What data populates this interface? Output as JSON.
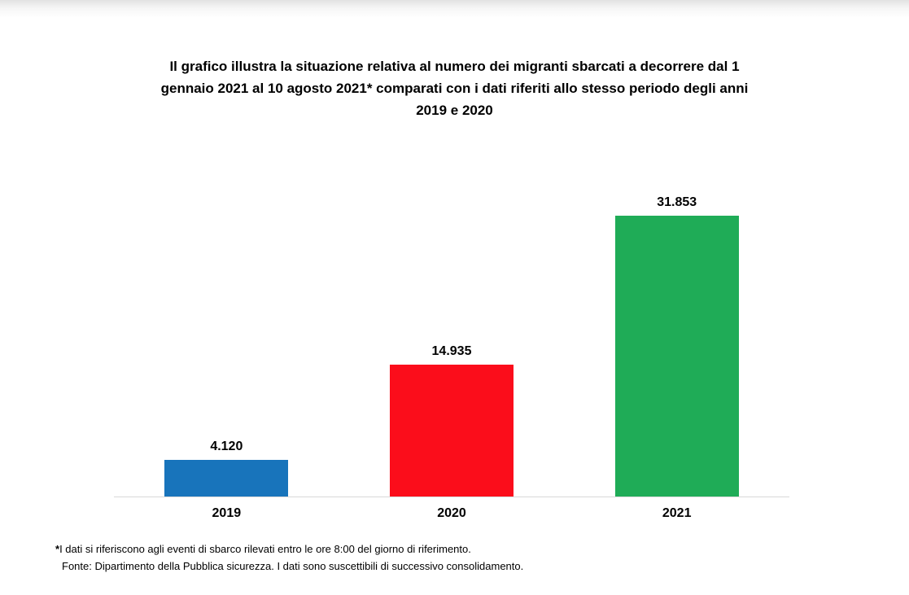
{
  "header": {
    "title_lines": [
      "Il grafico illustra la situazione relativa al numero dei migranti sbarcati a decorrere dal 1",
      "gennaio 2021 al 10 agosto 2021* comparati con i dati riferiti allo stesso periodo degli anni",
      "2019  e 2020"
    ]
  },
  "chart_data": {
    "type": "bar",
    "title": "Il grafico illustra la situazione relativa al numero dei migranti sbarcati a decorrere dal 1 gennaio 2021 al 10 agosto 2021* comparati con i dati riferiti allo stesso periodo degli anni 2019 e 2020",
    "categories": [
      "2019",
      "2020",
      "2021"
    ],
    "values": [
      4120,
      14935,
      31853
    ],
    "value_labels": [
      "4.120",
      "14.935",
      "31.853"
    ],
    "bar_colors": [
      "#1874BB",
      "#FB0D1B",
      "#1FAC57"
    ],
    "xlabel": "",
    "ylabel": "",
    "ylim": [
      0,
      33000
    ],
    "grid": false,
    "legend": "none",
    "axis_line_color": "#D9D9D9",
    "data_label_position": "above-bar"
  },
  "footnotes": {
    "line1_asterisk": "*",
    "line1": "I dati si riferiscono agli eventi di sbarco rilevati entro le ore 8:00 del giorno di riferimento.",
    "line2": "Fonte: Dipartimento della Pubblica sicurezza. I dati sono suscettibili di successivo consolidamento."
  }
}
